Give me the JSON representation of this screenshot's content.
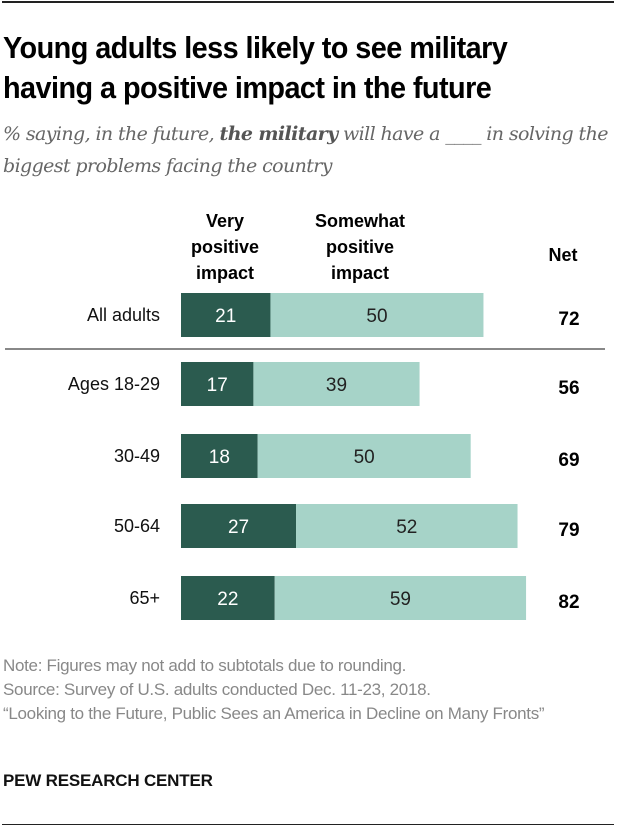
{
  "title_lines": [
    "Young adults less likely to see military",
    "having a positive impact in the future"
  ],
  "subtitle": {
    "pre": "% saying, in the future, ",
    "bold": "the military",
    "post": " will have a ____ in solving the biggest problems facing the country"
  },
  "chart_data": {
    "type": "bar",
    "orientation": "horizontal-stacked",
    "categories": [
      "All adults",
      "Ages 18-29",
      "30-49",
      "50-64",
      "65+"
    ],
    "series": [
      {
        "name": "Very positive impact",
        "values": [
          21,
          17,
          18,
          27,
          22
        ],
        "color": "#2b5b4f"
      },
      {
        "name": "Somewhat positive impact",
        "values": [
          50,
          39,
          50,
          52,
          59
        ],
        "color": "#a6d3c8"
      }
    ],
    "net_label": "Net",
    "net": [
      72,
      56,
      69,
      79,
      82
    ],
    "legend_headers": [
      "Very\npositive\nimpact",
      "Somewhat\npositive\nimpact"
    ]
  },
  "footer": {
    "note": "Note: Figures may not add to subtotals due to rounding.",
    "source": "Source: Survey of U.S. adults conducted Dec. 11-23, 2018.",
    "report": "“Looking to the Future, Public Sees an America in Decline on Many Fronts”"
  },
  "brand": "PEW RESEARCH CENTER"
}
